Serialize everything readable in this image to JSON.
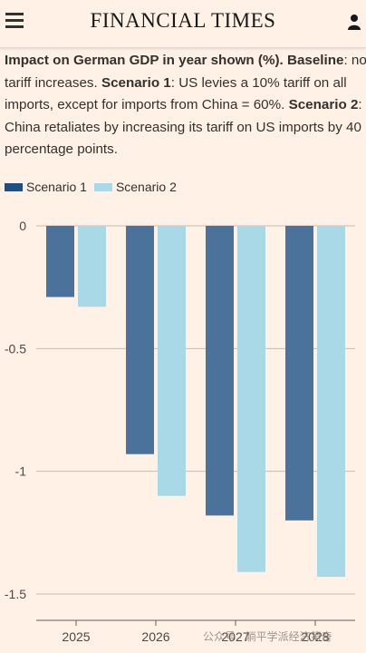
{
  "header": {
    "masthead": "FINANCIAL TIMES",
    "menu_icon": "hamburger-menu-icon",
    "user_icon": "user-icon"
  },
  "subtitle": {
    "p1_bold": "Impact on German GDP in year shown (%).",
    "p2_bold": "Baseline",
    "p2_text": ": no tariff increases.",
    "p3_bold": "Scenario 1",
    "p3_text": ": US levies a 10% tariff on all imports, except for imports from China = 60%.",
    "p4_bold": "Scenario 2",
    "p4_text": ": China retaliates by increasing its tariff on US imports by 40 percentage points."
  },
  "watermark": "公众号 · 躺平学派经济第奇",
  "colors": {
    "background": "#fff1e5",
    "scenario1": "#4a729b",
    "scenario2": "#a9d8e7",
    "legend_scenario1": "#1f4e82",
    "grid": "#c9bcb0",
    "text": "#33302e"
  },
  "chart_data": {
    "type": "bar",
    "categories": [
      "2025",
      "2026",
      "2027",
      "2028"
    ],
    "series": [
      {
        "name": "Scenario 1",
        "values": [
          -0.29,
          -0.93,
          -1.18,
          -1.2
        ]
      },
      {
        "name": "Scenario 2",
        "values": [
          -0.33,
          -1.1,
          -1.41,
          -1.43
        ]
      }
    ],
    "ylim": [
      -1.5,
      0
    ],
    "yticks": [
      0,
      -0.5,
      -1,
      -1.5
    ],
    "ytick_labels": [
      "0",
      "-0.5",
      "-1",
      "-1.5"
    ],
    "grid": true,
    "legend": "top-left"
  }
}
